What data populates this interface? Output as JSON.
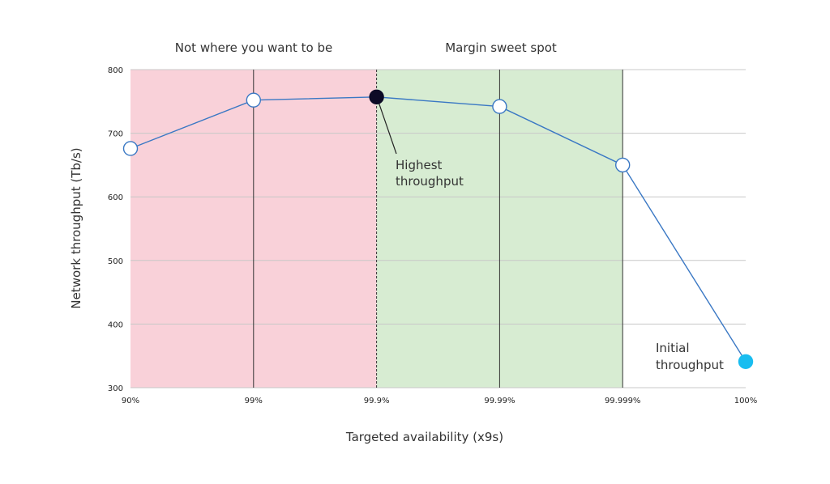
{
  "chart_data": {
    "type": "line",
    "title": "",
    "xlabel": "Targeted availability (x9s)",
    "ylabel": "Network throughput (Tb/s)",
    "categories": [
      "90%",
      "99%",
      "99.9%",
      "99.99%",
      "99.999%",
      "100%"
    ],
    "ylim": [
      300,
      800
    ],
    "yticks": [
      300,
      400,
      500,
      600,
      700,
      800
    ],
    "grid": true,
    "series": [
      {
        "values": [
          676,
          752,
          757,
          742,
          650,
          341
        ],
        "color": "#3a78c4",
        "point_styles": [
          "open",
          "open",
          "filled-dark",
          "open",
          "open",
          "filled-cyan"
        ]
      }
    ],
    "regions": [
      {
        "label": "Not where you want to be",
        "from": "90%",
        "to": "99.9%",
        "color": "#f9d1d9"
      },
      {
        "label": "Margin sweet spot",
        "from": "99.9%",
        "to": "99.999%",
        "color": "#d7ecd2"
      }
    ],
    "annotations": [
      {
        "lines": [
          "Highest",
          "throughput"
        ],
        "target": "99.9%"
      },
      {
        "lines": [
          "Initial",
          "throughput"
        ],
        "target": "100%"
      }
    ],
    "colors": {
      "highest_point": "#0d0a26",
      "initial_point": "#19bdf0",
      "gridline": "#c8c8c8",
      "divider": "#333333"
    }
  }
}
